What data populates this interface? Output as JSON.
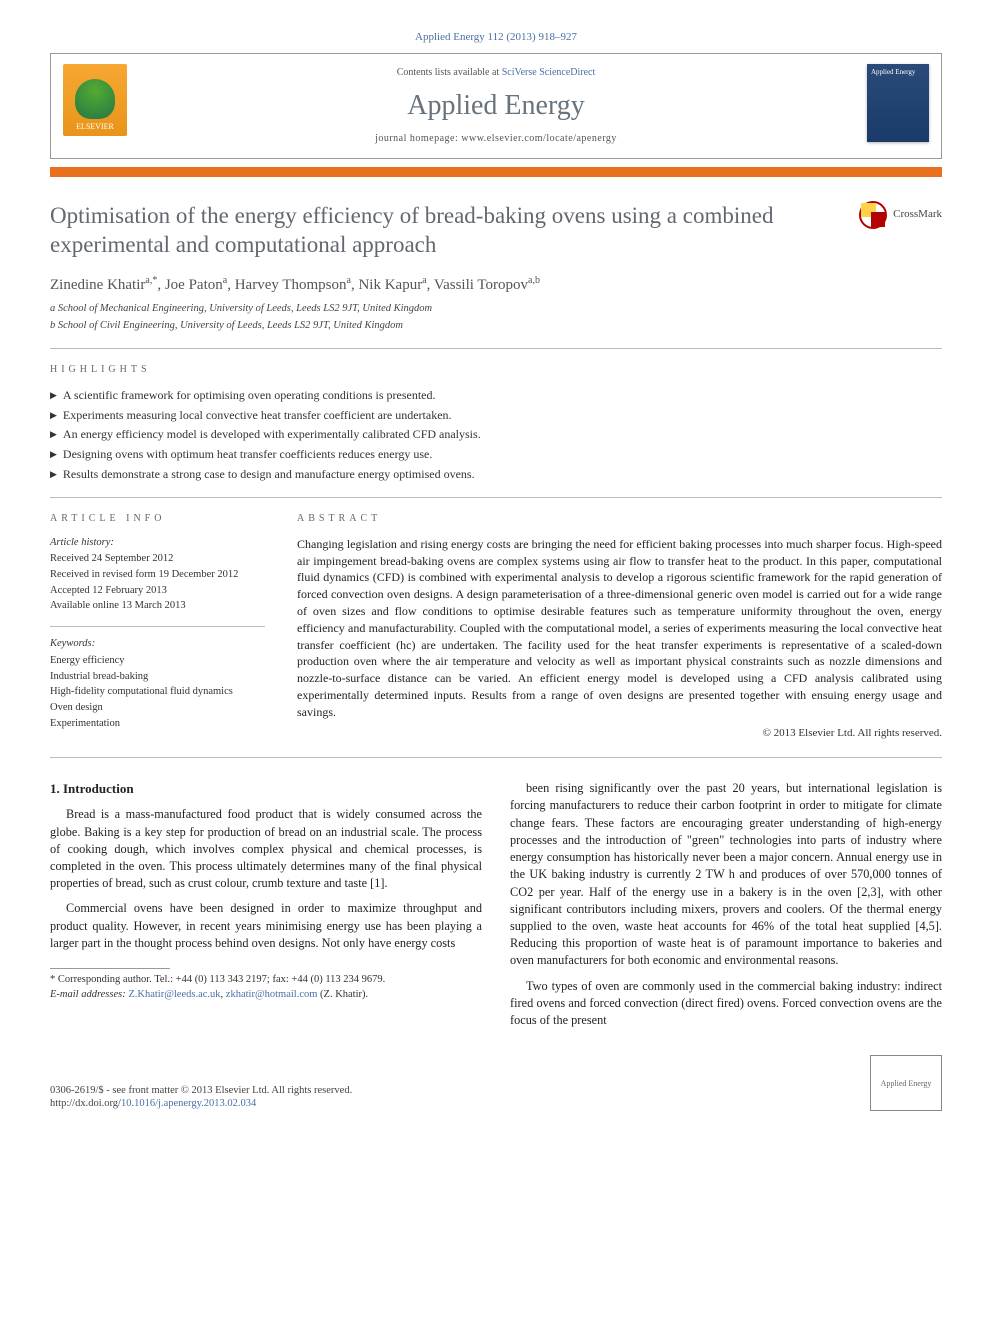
{
  "journal_ref": "Applied Energy 112 (2013) 918–927",
  "header": {
    "contents_text": "Contents lists available at ",
    "contents_link": "SciVerse ScienceDirect",
    "journal_name": "Applied Energy",
    "homepage_prefix": "journal homepage: ",
    "homepage_url": "www.elsevier.com/locate/apenergy",
    "elsevier_label": "ELSEVIER",
    "cover_label": "Applied Energy"
  },
  "title": "Optimisation of the energy efficiency of bread-baking ovens using a combined experimental and computational approach",
  "crossmark_label": "CrossMark",
  "authors_html": "Zinedine Khatir",
  "authors_rest": ", Joe Paton",
  "author_a": "a,*",
  "author_a2": "a",
  "author3": ", Harvey Thompson",
  "author3_sup": "a",
  "author4": ", Nik Kapur",
  "author4_sup": "a",
  "author5": ", Vassili Toropov",
  "author5_sup": "a,b",
  "affiliations": [
    "a School of Mechanical Engineering, University of Leeds, Leeds LS2 9JT, United Kingdom",
    "b School of Civil Engineering, University of Leeds, Leeds LS2 9JT, United Kingdom"
  ],
  "highlights_label": "HIGHLIGHTS",
  "highlights": [
    "A scientific framework for optimising oven operating conditions is presented.",
    "Experiments measuring local convective heat transfer coefficient are undertaken.",
    "An energy efficiency model is developed with experimentally calibrated CFD analysis.",
    "Designing ovens with optimum heat transfer coefficients reduces energy use.",
    "Results demonstrate a strong case to design and manufacture energy optimised ovens."
  ],
  "article_info_label": "ARTICLE INFO",
  "article_info": {
    "history_label": "Article history:",
    "history": [
      "Received 24 September 2012",
      "Received in revised form 19 December 2012",
      "Accepted 12 February 2013",
      "Available online 13 March 2013"
    ],
    "keywords_label": "Keywords:",
    "keywords": [
      "Energy efficiency",
      "Industrial bread-baking",
      "High-fidelity computational fluid dynamics",
      "Oven design",
      "Experimentation"
    ]
  },
  "abstract_label": "ABSTRACT",
  "abstract": "Changing legislation and rising energy costs are bringing the need for efficient baking processes into much sharper focus. High-speed air impingement bread-baking ovens are complex systems using air flow to transfer heat to the product. In this paper, computational fluid dynamics (CFD) is combined with experimental analysis to develop a rigorous scientific framework for the rapid generation of forced convection oven designs. A design parameterisation of a three-dimensional generic oven model is carried out for a wide range of oven sizes and flow conditions to optimise desirable features such as temperature uniformity throughout the oven, energy efficiency and manufacturability. Coupled with the computational model, a series of experiments measuring the local convective heat transfer coefficient (hc) are undertaken. The facility used for the heat transfer experiments is representative of a scaled-down production oven where the air temperature and velocity as well as important physical constraints such as nozzle dimensions and nozzle-to-surface distance can be varied. An efficient energy model is developed using a CFD analysis calibrated using experimentally determined inputs. Results from a range of oven designs are presented together with ensuing energy usage and savings.",
  "copyright": "© 2013 Elsevier Ltd. All rights reserved.",
  "intro_heading": "1. Introduction",
  "intro_p1": "Bread is a mass-manufactured food product that is widely consumed across the globe. Baking is a key step for production of bread on an industrial scale. The process of cooking dough, which involves complex physical and chemical processes, is completed in the oven. This process ultimately determines many of the final physical properties of bread, such as crust colour, crumb texture and taste [1].",
  "intro_p2": "Commercial ovens have been designed in order to maximize throughput and product quality. However, in recent years minimising energy use has been playing a larger part in the thought process behind oven designs. Not only have energy costs",
  "corresponding": {
    "label": "* Corresponding author. Tel.: +44 (0) 113 343 2197; fax: +44 (0) 113 234 9679.",
    "email_prefix": "E-mail addresses: ",
    "email1": "Z.Khatir@leeds.ac.uk",
    "email_sep": ", ",
    "email2": "zkhatir@hotmail.com",
    "email_tail": " (Z. Khatir)."
  },
  "col2_p1": "been rising significantly over the past 20 years, but international legislation is forcing manufacturers to reduce their carbon footprint in order to mitigate for climate change fears. These factors are encouraging greater understanding of high-energy processes and the introduction of \"green\" technologies into parts of industry where energy consumption has historically never been a major concern. Annual energy use in the UK baking industry is currently 2 TW h and produces of over 570,000 tonnes of CO2 per year. Half of the energy use in a bakery is in the oven [2,3], with other significant contributors including mixers, provers and coolers. Of the thermal energy supplied to the oven, waste heat accounts for 46% of the total heat supplied [4,5]. Reducing this proportion of waste heat is of paramount importance to bakeries and oven manufacturers for both economic and environmental reasons.",
  "col2_p2": "Two types of oven are commonly used in the commercial baking industry: indirect fired ovens and forced convection (direct fired) ovens. Forced convection ovens are the focus of the present",
  "footer": {
    "issn": "0306-2619/$ - see front matter © 2013 Elsevier Ltd. All rights reserved.",
    "doi_prefix": "http://dx.doi.org/",
    "doi": "10.1016/j.apenergy.2013.02.034",
    "cover_text": "Applied Energy"
  },
  "colors": {
    "link": "#4a6fa5",
    "orange_bar": "#e8701e",
    "title_gray": "#626770",
    "elsevier_orange": "#f7a832"
  }
}
